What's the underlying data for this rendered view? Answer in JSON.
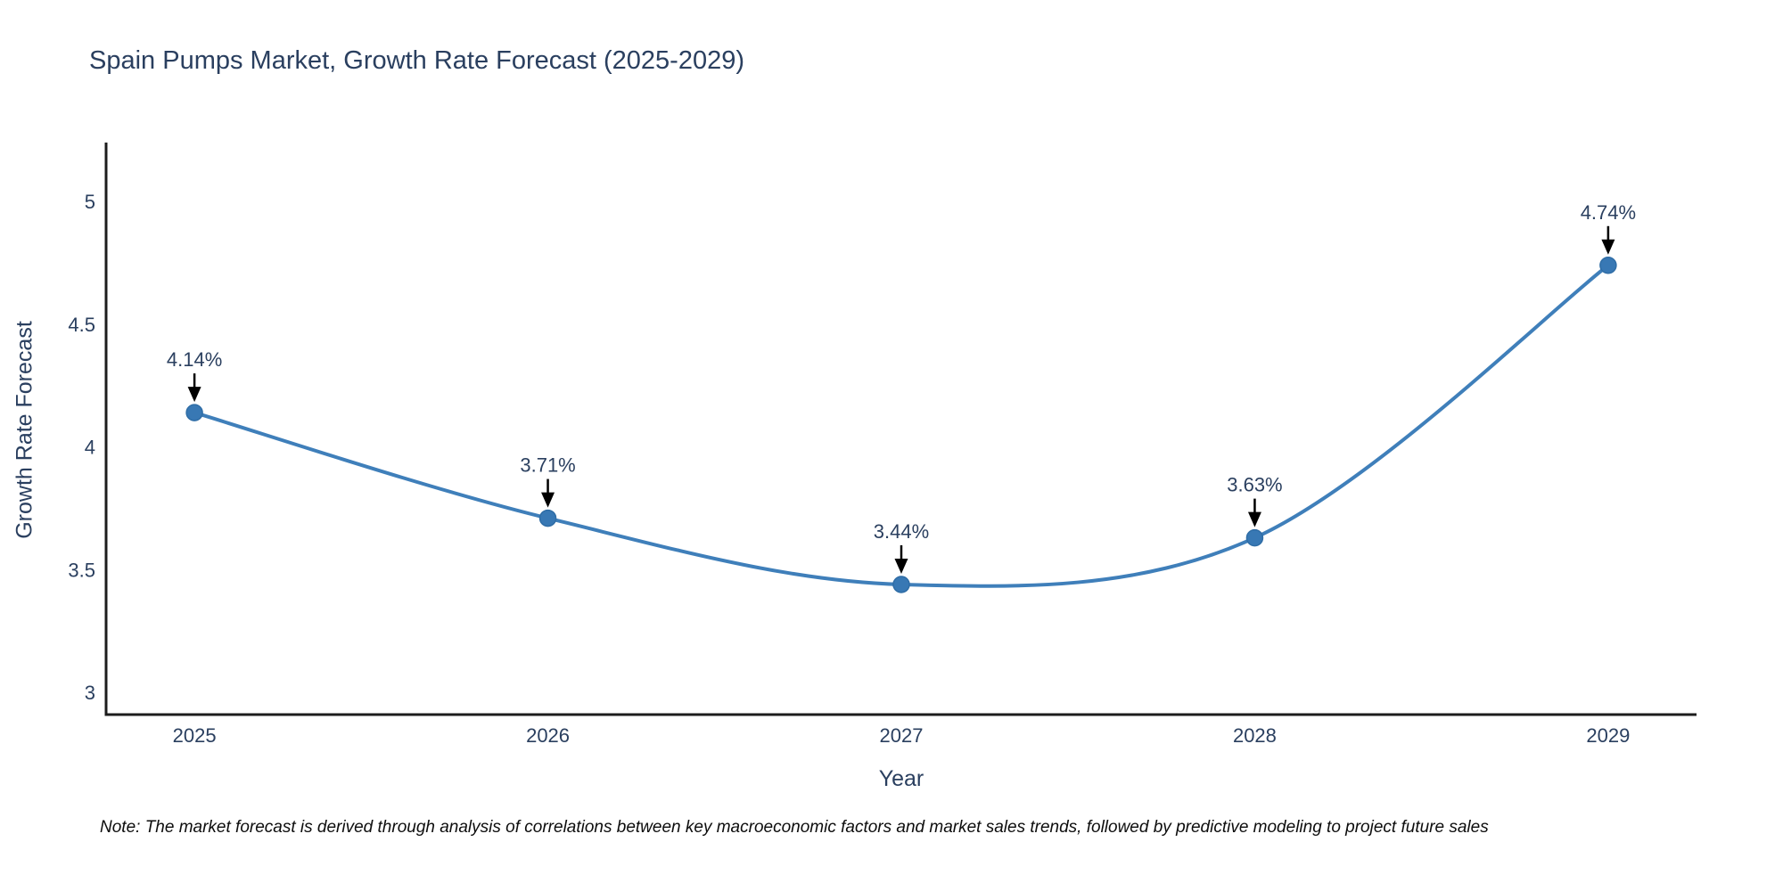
{
  "title": "Spain Pumps Market, Growth Rate Forecast (2025-2029)",
  "footnote": "Note: The market forecast is derived through analysis of correlations between key macroeconomic factors and market sales trends, followed by predictive modeling to project future sales",
  "colors": {
    "line": "#3f7fba",
    "marker_fill": "#3878b4",
    "marker_edge": "#2f6da6",
    "axis_line": "#1c1c1c",
    "text": "#2a3f5f",
    "arrow": "#000000"
  },
  "chart_data": {
    "type": "line",
    "line_shape": "spline",
    "x": [
      2025,
      2026,
      2027,
      2028,
      2029
    ],
    "values": [
      4.14,
      3.71,
      3.44,
      3.63,
      4.74
    ],
    "point_labels": [
      "4.14%",
      "3.71%",
      "3.44%",
      "3.63%",
      "4.74%"
    ],
    "title": "Spain Pumps Market, Growth Rate Forecast (2025-2029)",
    "xlabel": "Year",
    "ylabel": "Growth Rate Forecast",
    "xticks": [
      "2025",
      "2026",
      "2027",
      "2028",
      "2029"
    ],
    "yticks": [
      3,
      3.5,
      4,
      4.5,
      5
    ],
    "xlim": [
      2024.75,
      2029.25
    ],
    "ylim": [
      2.91,
      5.24
    ],
    "grid": false,
    "legend": false,
    "annotation_arrows": "down"
  }
}
